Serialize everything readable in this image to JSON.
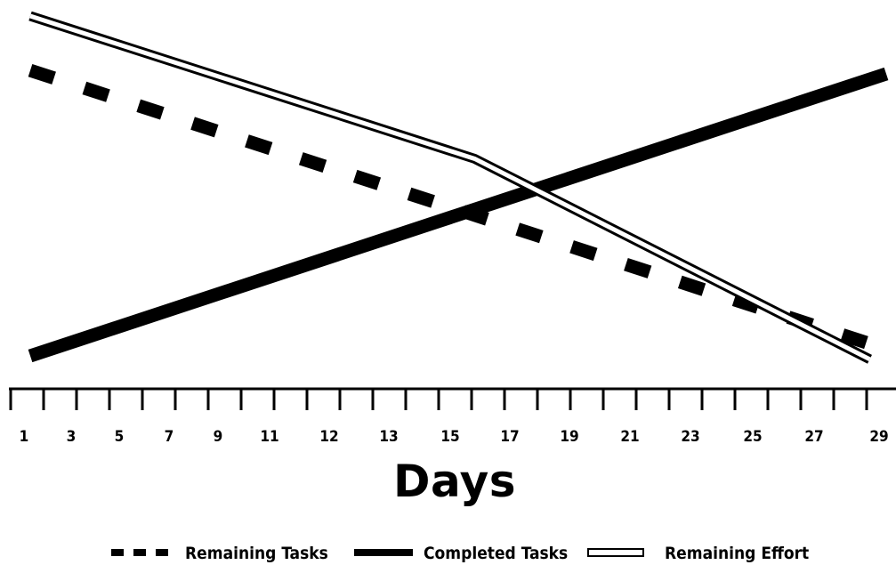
{
  "chart_data": {
    "type": "line",
    "title": "",
    "xlabel": "Days",
    "ylabel": "",
    "tick_labels": [
      "1",
      "3",
      "5",
      "7",
      "9",
      "11",
      "12",
      "13",
      "15",
      "17",
      "19",
      "21",
      "23",
      "25",
      "27",
      "29"
    ],
    "num_ticks": 27,
    "xlim": [
      0,
      26
    ],
    "ylim": [
      0,
      100
    ],
    "grid": false,
    "legend_position": "bottom",
    "series": [
      {
        "name": "Remaining Tasks",
        "style": "dashed",
        "color": "#000000",
        "points": [
          [
            0,
            84
          ],
          [
            26,
            2
          ]
        ]
      },
      {
        "name": "Completed Tasks",
        "style": "solid",
        "color": "#000000",
        "points": [
          [
            0,
            0
          ],
          [
            26,
            83
          ]
        ]
      },
      {
        "name": "Remaining Effort",
        "style": "double",
        "color": "#000000",
        "points": [
          [
            0,
            100
          ],
          [
            13.5,
            58
          ],
          [
            25.5,
            -1
          ]
        ]
      }
    ]
  }
}
